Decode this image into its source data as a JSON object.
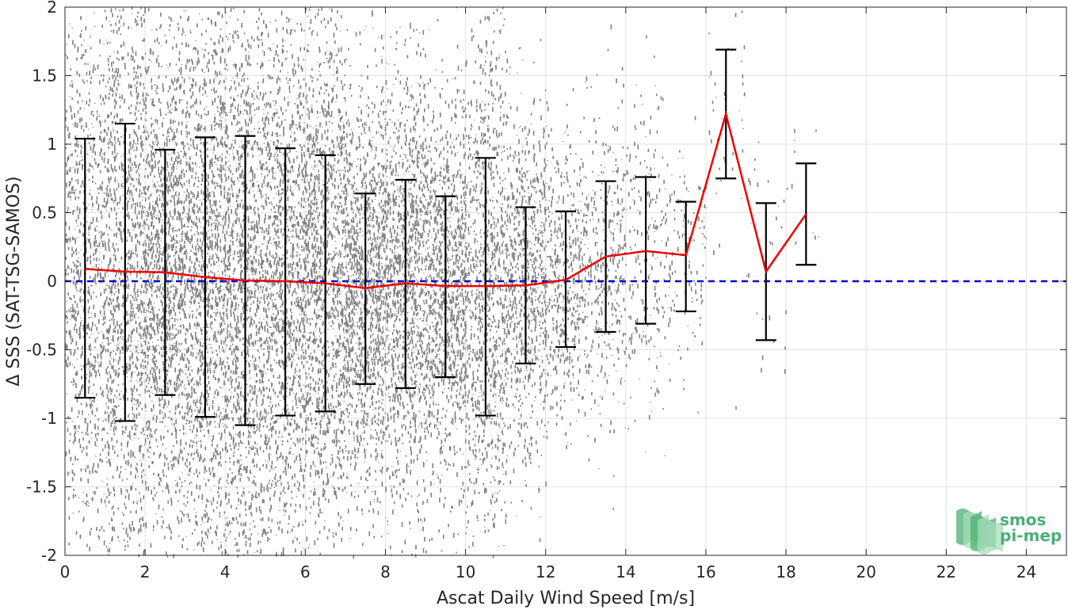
{
  "chart_data": {
    "type": "scatter",
    "title": "",
    "xlabel": "Ascat Daily Wind Speed [m/s]",
    "ylabel": "Δ SSS (SAT-TSG-SAMOS)",
    "xlim": [
      0,
      25
    ],
    "ylim": [
      -2,
      2
    ],
    "xticks": [
      0,
      2,
      4,
      6,
      8,
      10,
      12,
      14,
      16,
      18,
      20,
      22,
      24
    ],
    "yticks": [
      -2,
      -1.5,
      -1,
      -0.5,
      0,
      0.5,
      1,
      1.5,
      2
    ],
    "xtick_labels": [
      "0",
      "2",
      "4",
      "6",
      "8",
      "10",
      "12",
      "14",
      "16",
      "18",
      "20",
      "22",
      "24"
    ],
    "ytick_labels": [
      "-2",
      "-1.5",
      "-1",
      "-0.5",
      "0",
      "0.5",
      "1",
      "1.5",
      "2"
    ],
    "grid": true,
    "scatter_color": "#808080",
    "mean_line_color": "#ee0000",
    "errorbar_color": "#000000",
    "zero_line": {
      "y": 0,
      "color": "#0000cc",
      "style": "dashed"
    },
    "bins": {
      "x": [
        0.5,
        1.5,
        2.5,
        3.5,
        4.5,
        5.5,
        6.5,
        7.5,
        8.5,
        9.5,
        10.5,
        11.5,
        12.5,
        13.5,
        14.5,
        15.5,
        16.5,
        17.5,
        18.5
      ],
      "mean": [
        0.09,
        0.07,
        0.065,
        0.03,
        0.005,
        0.0,
        -0.015,
        -0.05,
        -0.015,
        -0.035,
        -0.035,
        -0.03,
        0.01,
        0.18,
        0.22,
        0.19,
        1.22,
        0.07,
        0.49
      ],
      "lower": [
        -0.85,
        -1.02,
        -0.83,
        -0.99,
        -1.05,
        -0.98,
        -0.95,
        -0.75,
        -0.78,
        -0.7,
        -0.98,
        -0.6,
        -0.48,
        -0.37,
        -0.31,
        -0.22,
        0.75,
        -0.43,
        0.12
      ],
      "upper": [
        1.04,
        1.15,
        0.96,
        1.05,
        1.06,
        0.97,
        0.92,
        0.64,
        0.74,
        0.62,
        0.9,
        0.54,
        0.51,
        0.73,
        0.76,
        0.58,
        1.69,
        0.57,
        0.86
      ]
    },
    "scatter_spread": {
      "x_max": 19,
      "note_free": true
    }
  },
  "logo": {
    "line1": "smos",
    "line2": "pi-mep",
    "color_dark": "#4caf76",
    "color_light": "#a8dcb8"
  }
}
